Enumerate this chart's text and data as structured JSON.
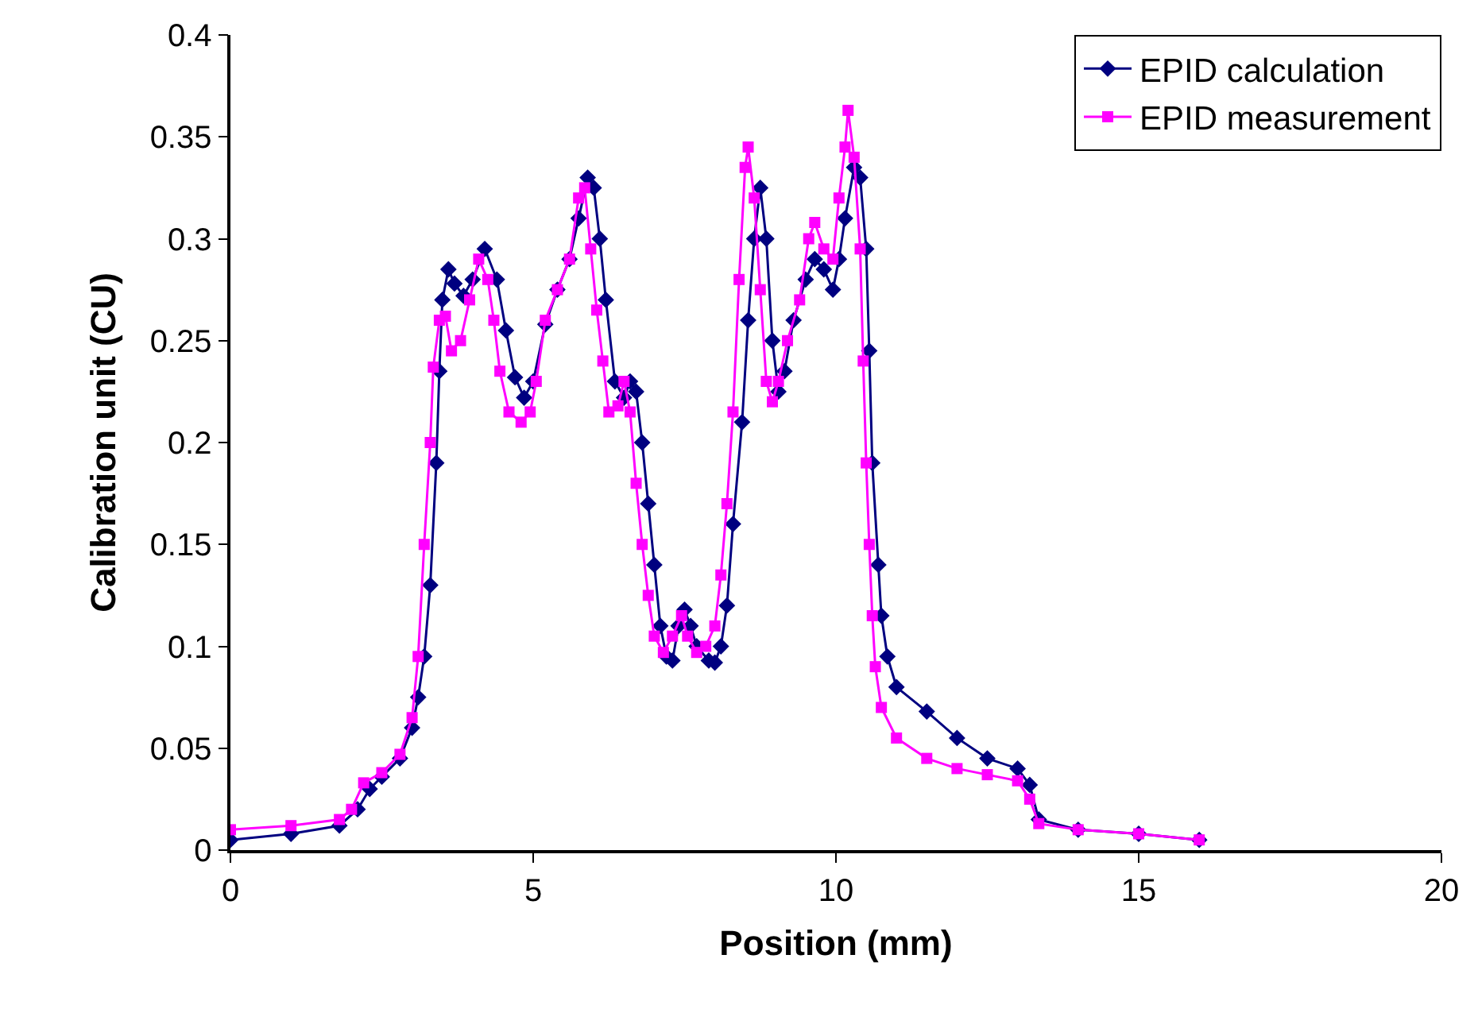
{
  "chart_data": {
    "type": "line",
    "xlabel": "Position (mm)",
    "ylabel": "Calibration unit (CU)",
    "xlim": [
      0,
      20
    ],
    "xticks": [
      0,
      5,
      10,
      15,
      20
    ],
    "ylim": [
      0,
      0.4
    ],
    "yticks": [
      0,
      0.05,
      0.1,
      0.15,
      0.2,
      0.25,
      0.3,
      0.35,
      0.4
    ],
    "legend": "top right",
    "line_style": "solid",
    "series": [
      {
        "name": "EPID calculation",
        "color": "#000080",
        "marker": "diamond",
        "x": [
          0,
          1,
          1.8,
          2.1,
          2.3,
          2.5,
          2.8,
          3.0,
          3.1,
          3.2,
          3.3,
          3.4,
          3.45,
          3.5,
          3.6,
          3.7,
          3.85,
          4.0,
          4.2,
          4.4,
          4.55,
          4.7,
          4.85,
          5.0,
          5.2,
          5.4,
          5.6,
          5.75,
          5.9,
          6.0,
          6.1,
          6.2,
          6.35,
          6.5,
          6.6,
          6.7,
          6.8,
          6.9,
          7.0,
          7.1,
          7.2,
          7.3,
          7.4,
          7.5,
          7.6,
          7.7,
          7.9,
          8.0,
          8.1,
          8.2,
          8.3,
          8.45,
          8.55,
          8.65,
          8.75,
          8.85,
          8.95,
          9.05,
          9.15,
          9.3,
          9.5,
          9.65,
          9.8,
          9.95,
          10.05,
          10.15,
          10.3,
          10.4,
          10.5,
          10.55,
          10.6,
          10.7,
          10.75,
          10.85,
          11.0,
          11.5,
          12.0,
          12.5,
          13.0,
          13.2,
          13.35,
          14.0,
          15.0,
          16.0
        ],
        "values": [
          0.005,
          0.008,
          0.012,
          0.02,
          0.03,
          0.036,
          0.045,
          0.06,
          0.075,
          0.095,
          0.13,
          0.19,
          0.235,
          0.27,
          0.285,
          0.278,
          0.272,
          0.28,
          0.295,
          0.28,
          0.255,
          0.232,
          0.222,
          0.23,
          0.258,
          0.275,
          0.29,
          0.31,
          0.33,
          0.325,
          0.3,
          0.27,
          0.23,
          0.222,
          0.23,
          0.225,
          0.2,
          0.17,
          0.14,
          0.11,
          0.095,
          0.093,
          0.11,
          0.118,
          0.11,
          0.1,
          0.093,
          0.092,
          0.1,
          0.12,
          0.16,
          0.21,
          0.26,
          0.3,
          0.325,
          0.3,
          0.25,
          0.225,
          0.235,
          0.26,
          0.28,
          0.29,
          0.285,
          0.275,
          0.29,
          0.31,
          0.335,
          0.33,
          0.295,
          0.245,
          0.19,
          0.14,
          0.115,
          0.095,
          0.08,
          0.068,
          0.055,
          0.045,
          0.04,
          0.032,
          0.015,
          0.01,
          0.008,
          0.005
        ]
      },
      {
        "name": "EPID measurement",
        "color": "#ff00ff",
        "marker": "square",
        "x": [
          0,
          1,
          1.8,
          2.0,
          2.2,
          2.5,
          2.8,
          3.0,
          3.1,
          3.2,
          3.3,
          3.35,
          3.45,
          3.55,
          3.65,
          3.8,
          3.95,
          4.1,
          4.25,
          4.35,
          4.45,
          4.6,
          4.8,
          4.95,
          5.05,
          5.2,
          5.4,
          5.6,
          5.75,
          5.85,
          5.95,
          6.05,
          6.15,
          6.25,
          6.4,
          6.5,
          6.6,
          6.7,
          6.8,
          6.9,
          7.0,
          7.15,
          7.3,
          7.45,
          7.55,
          7.7,
          7.85,
          8.0,
          8.1,
          8.2,
          8.3,
          8.4,
          8.5,
          8.55,
          8.65,
          8.75,
          8.85,
          8.95,
          9.05,
          9.2,
          9.4,
          9.55,
          9.65,
          9.8,
          9.95,
          10.05,
          10.15,
          10.2,
          10.3,
          10.4,
          10.45,
          10.5,
          10.55,
          10.6,
          10.65,
          10.75,
          11.0,
          11.5,
          12.0,
          12.5,
          13.0,
          13.2,
          13.35,
          14.0,
          15.0,
          16.0
        ],
        "values": [
          0.01,
          0.012,
          0.015,
          0.02,
          0.033,
          0.038,
          0.047,
          0.065,
          0.095,
          0.15,
          0.2,
          0.237,
          0.26,
          0.262,
          0.245,
          0.25,
          0.27,
          0.29,
          0.28,
          0.26,
          0.235,
          0.215,
          0.21,
          0.215,
          0.23,
          0.26,
          0.275,
          0.29,
          0.32,
          0.325,
          0.295,
          0.265,
          0.24,
          0.215,
          0.218,
          0.23,
          0.215,
          0.18,
          0.15,
          0.125,
          0.105,
          0.097,
          0.105,
          0.115,
          0.105,
          0.097,
          0.1,
          0.11,
          0.135,
          0.17,
          0.215,
          0.28,
          0.335,
          0.345,
          0.32,
          0.275,
          0.23,
          0.22,
          0.23,
          0.25,
          0.27,
          0.3,
          0.308,
          0.295,
          0.29,
          0.32,
          0.345,
          0.363,
          0.34,
          0.295,
          0.24,
          0.19,
          0.15,
          0.115,
          0.09,
          0.07,
          0.055,
          0.045,
          0.04,
          0.037,
          0.034,
          0.025,
          0.013,
          0.01,
          0.008,
          0.005
        ]
      }
    ]
  }
}
